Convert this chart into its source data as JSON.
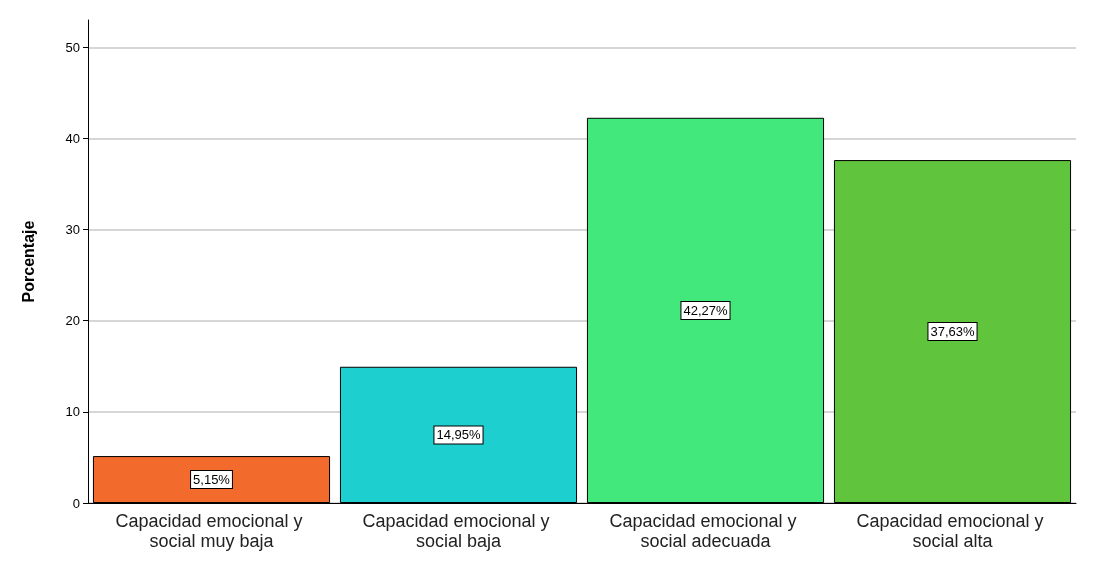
{
  "chart_data": {
    "type": "bar",
    "ylabel": "Porcentaje",
    "categories": [
      "Capacidad emocional y social muy baja",
      "Capacidad emocional y social baja",
      "Capacidad emocional y social adecuada",
      "Capacidad emocional y social alta"
    ],
    "values": [
      5.15,
      14.95,
      42.27,
      37.63
    ],
    "value_labels": [
      "5,15%",
      "14,95%",
      "42,27%",
      "37,63%"
    ],
    "colors": [
      "#f26a2c",
      "#1ecfcf",
      "#43e87c",
      "#60c43c"
    ],
    "ylim": [
      0,
      53
    ],
    "yticks": [
      0,
      10,
      20,
      30,
      40,
      50
    ],
    "grid": "y"
  }
}
